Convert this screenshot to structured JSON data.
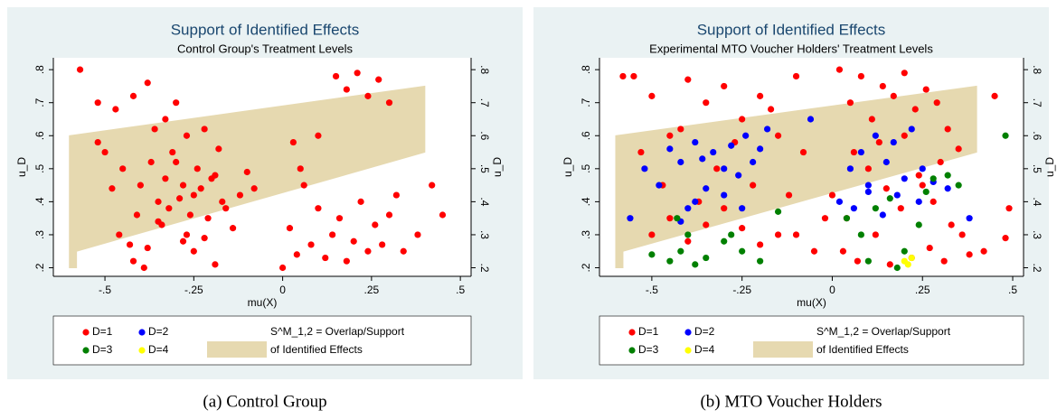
{
  "chart_data": [
    {
      "type": "scatter",
      "title": "Support of Identified Effects",
      "subtitle": "Control Group's Treatment Levels",
      "x_label": "mu(X)",
      "y_label": "u_D",
      "caption": "(a) Control Group",
      "xlim": [
        -0.635,
        0.52
      ],
      "ylim": [
        0.185,
        0.825
      ],
      "xticks": [
        {
          "value": -0.5,
          "label": "-.5"
        },
        {
          "value": -0.25,
          "label": "-.25"
        },
        0,
        {
          "value": 0.25,
          "label": ".25"
        },
        {
          "value": 0.5,
          "label": ".5"
        }
      ],
      "yticks": [
        {
          "value": 0.2,
          "label": ".2"
        },
        {
          "value": 0.3,
          "label": ".3"
        },
        {
          "value": 0.4,
          "label": ".4"
        },
        {
          "value": 0.5,
          "label": ".5"
        },
        {
          "value": 0.6,
          "label": ".6"
        },
        {
          "value": 0.7,
          "label": ".7"
        },
        {
          "value": 0.8,
          "label": ".8"
        }
      ],
      "band": {
        "color": "#e6d9b0",
        "label_lines": [
          "S^M_1,2 = Overlap/Support",
          "of Identified Effects"
        ],
        "x": [
          -0.6,
          -0.6,
          0.4,
          0.4,
          -0.58,
          -0.58
        ],
        "y": [
          0.2,
          0.6,
          0.75,
          0.55,
          0.25,
          0.2
        ]
      },
      "series": [
        {
          "name": "D=1",
          "color": "#ff0000",
          "x": [
            -0.57,
            -0.52,
            -0.5,
            -0.47,
            -0.45,
            -0.42,
            -0.4,
            -0.38,
            -0.36,
            -0.35,
            -0.33,
            -0.31,
            -0.3,
            -0.28,
            -0.27,
            -0.25,
            -0.24,
            -0.22,
            -0.2,
            -0.18,
            -0.52,
            -0.48,
            -0.46,
            -0.43,
            -0.41,
            -0.39,
            -0.37,
            -0.34,
            -0.32,
            -0.29,
            -0.27,
            -0.25,
            -0.23,
            -0.21,
            -0.19,
            -0.16,
            -0.14,
            -0.12,
            -0.1,
            -0.08,
            -0.42,
            -0.38,
            -0.35,
            -0.33,
            -0.3,
            -0.28,
            -0.26,
            -0.22,
            -0.19,
            -0.17,
            0.0,
            0.02,
            0.04,
            0.06,
            0.08,
            0.1,
            0.12,
            0.14,
            0.16,
            0.18,
            0.2,
            0.22,
            0.24,
            0.26,
            0.28,
            0.3,
            0.32,
            0.34,
            0.38,
            0.42,
            0.15,
            0.18,
            0.21,
            0.24,
            0.27,
            0.3,
            0.05,
            0.1,
            0.03,
            0.45
          ],
          "values": [
            0.8,
            0.7,
            0.55,
            0.68,
            0.5,
            0.72,
            0.45,
            0.76,
            0.62,
            0.4,
            0.65,
            0.55,
            0.7,
            0.45,
            0.6,
            0.42,
            0.5,
            0.62,
            0.47,
            0.56,
            0.58,
            0.44,
            0.3,
            0.27,
            0.36,
            0.2,
            0.52,
            0.33,
            0.38,
            0.41,
            0.3,
            0.25,
            0.44,
            0.35,
            0.48,
            0.38,
            0.32,
            0.42,
            0.49,
            0.44,
            0.22,
            0.26,
            0.34,
            0.47,
            0.52,
            0.28,
            0.36,
            0.29,
            0.21,
            0.4,
            0.2,
            0.32,
            0.24,
            0.45,
            0.27,
            0.38,
            0.23,
            0.3,
            0.35,
            0.22,
            0.28,
            0.4,
            0.25,
            0.33,
            0.27,
            0.36,
            0.42,
            0.25,
            0.3,
            0.45,
            0.78,
            0.74,
            0.79,
            0.72,
            0.77,
            0.7,
            0.5,
            0.6,
            0.58,
            0.36
          ]
        },
        {
          "name": "D=2",
          "color": "#0000ff",
          "x": [],
          "values": []
        },
        {
          "name": "D=3",
          "color": "#008000",
          "x": [],
          "values": []
        },
        {
          "name": "D=4",
          "color": "#ffff00",
          "x": [],
          "values": []
        }
      ]
    },
    {
      "type": "scatter",
      "title": "Support of Identified Effects",
      "subtitle": "Experimental MTO Voucher Holders' Treatment Levels",
      "x_label": "mu(X)",
      "y_label": "u_D",
      "caption": "(b) MTO Voucher Holders",
      "xlim": [
        -0.635,
        0.52
      ],
      "ylim": [
        0.185,
        0.825
      ],
      "xticks": [
        {
          "value": -0.5,
          "label": "-.5"
        },
        {
          "value": -0.25,
          "label": "-.25"
        },
        0,
        {
          "value": 0.25,
          "label": ".25"
        },
        {
          "value": 0.5,
          "label": ".5"
        }
      ],
      "yticks": [
        {
          "value": 0.2,
          "label": ".2"
        },
        {
          "value": 0.3,
          "label": ".3"
        },
        {
          "value": 0.4,
          "label": ".4"
        },
        {
          "value": 0.5,
          "label": ".5"
        },
        {
          "value": 0.6,
          "label": ".6"
        },
        {
          "value": 0.7,
          "label": ".7"
        },
        {
          "value": 0.8,
          "label": ".8"
        }
      ],
      "band": {
        "color": "#e6d9b0",
        "label_lines": [
          "S^M_1,2 = Overlap/Support",
          "of Identified Effects"
        ],
        "x": [
          -0.6,
          -0.6,
          0.4,
          0.4,
          -0.58,
          -0.58
        ],
        "y": [
          0.2,
          0.6,
          0.75,
          0.55,
          0.25,
          0.2
        ]
      },
      "series": [
        {
          "name": "D=1",
          "color": "#ff0000",
          "x": [
            -0.55,
            -0.5,
            -0.45,
            -0.4,
            -0.35,
            -0.3,
            -0.25,
            -0.2,
            -0.15,
            -0.1,
            -0.53,
            -0.47,
            -0.42,
            -0.37,
            -0.32,
            -0.27,
            -0.22,
            -0.17,
            -0.12,
            -0.08,
            -0.5,
            -0.45,
            -0.4,
            -0.35,
            -0.3,
            -0.25,
            -0.2,
            -0.15,
            0.02,
            0.05,
            0.08,
            0.11,
            0.14,
            0.17,
            0.2,
            0.23,
            0.26,
            0.29,
            0.32,
            0.35,
            0.03,
            0.07,
            0.12,
            0.16,
            0.22,
            0.27,
            0.31,
            0.36,
            0.42,
            0.48,
            0.0,
            0.04,
            0.1,
            0.15,
            0.19,
            0.24,
            0.28,
            0.33,
            0.45,
            0.49,
            -0.05,
            -0.02,
            0.06,
            0.13,
            0.2,
            0.25,
            0.3,
            0.38,
            -0.1,
            -0.58
          ],
          "values": [
            0.78,
            0.72,
            0.6,
            0.77,
            0.7,
            0.75,
            0.65,
            0.72,
            0.6,
            0.78,
            0.55,
            0.45,
            0.62,
            0.4,
            0.5,
            0.58,
            0.45,
            0.68,
            0.42,
            0.55,
            0.3,
            0.35,
            0.28,
            0.33,
            0.38,
            0.32,
            0.27,
            0.3,
            0.8,
            0.7,
            0.78,
            0.65,
            0.75,
            0.72,
            0.79,
            0.68,
            0.74,
            0.7,
            0.62,
            0.56,
            0.25,
            0.22,
            0.3,
            0.21,
            0.23,
            0.26,
            0.22,
            0.3,
            0.25,
            0.29,
            0.42,
            0.35,
            0.5,
            0.44,
            0.38,
            0.48,
            0.4,
            0.33,
            0.72,
            0.38,
            0.25,
            0.35,
            0.55,
            0.58,
            0.6,
            0.45,
            0.52,
            0.24,
            0.3,
            0.78
          ]
        },
        {
          "name": "D=2",
          "color": "#0000ff",
          "x": [
            -0.52,
            -0.48,
            -0.45,
            -0.42,
            -0.4,
            -0.38,
            -0.36,
            -0.33,
            -0.3,
            -0.28,
            -0.26,
            -0.24,
            -0.22,
            -0.2,
            -0.18,
            -0.42,
            -0.38,
            -0.35,
            -0.3,
            -0.25,
            -0.06,
            0.05,
            0.08,
            0.1,
            0.12,
            0.15,
            0.17,
            0.2,
            0.22,
            0.25,
            0.02,
            0.06,
            0.1,
            0.14,
            0.18,
            0.24,
            0.28,
            0.32,
            -0.56,
            0.38
          ],
          "values": [
            0.5,
            0.45,
            0.56,
            0.52,
            0.38,
            0.58,
            0.53,
            0.55,
            0.5,
            0.57,
            0.48,
            0.6,
            0.52,
            0.56,
            0.62,
            0.34,
            0.4,
            0.44,
            0.42,
            0.38,
            0.65,
            0.5,
            0.55,
            0.45,
            0.6,
            0.52,
            0.58,
            0.47,
            0.62,
            0.5,
            0.4,
            0.38,
            0.43,
            0.36,
            0.42,
            0.4,
            0.46,
            0.44,
            0.35,
            0.35
          ]
        },
        {
          "name": "D=3",
          "color": "#008000",
          "x": [
            -0.5,
            -0.45,
            -0.42,
            -0.38,
            -0.35,
            -0.3,
            -0.28,
            -0.25,
            -0.2,
            -0.15,
            0.04,
            0.08,
            0.12,
            0.16,
            0.2,
            0.24,
            0.28,
            0.32,
            0.35,
            0.48,
            -0.43,
            -0.4,
            0.1,
            0.18,
            0.26
          ],
          "values": [
            0.24,
            0.22,
            0.25,
            0.21,
            0.23,
            0.28,
            0.3,
            0.25,
            0.22,
            0.37,
            0.35,
            0.3,
            0.38,
            0.41,
            0.25,
            0.33,
            0.47,
            0.48,
            0.45,
            0.6,
            0.35,
            0.3,
            0.22,
            0.2,
            0.43
          ]
        },
        {
          "name": "D=4",
          "color": "#ffff00",
          "x": [
            0.2,
            0.21,
            0.22
          ],
          "values": [
            0.22,
            0.21,
            0.23
          ]
        }
      ]
    }
  ]
}
